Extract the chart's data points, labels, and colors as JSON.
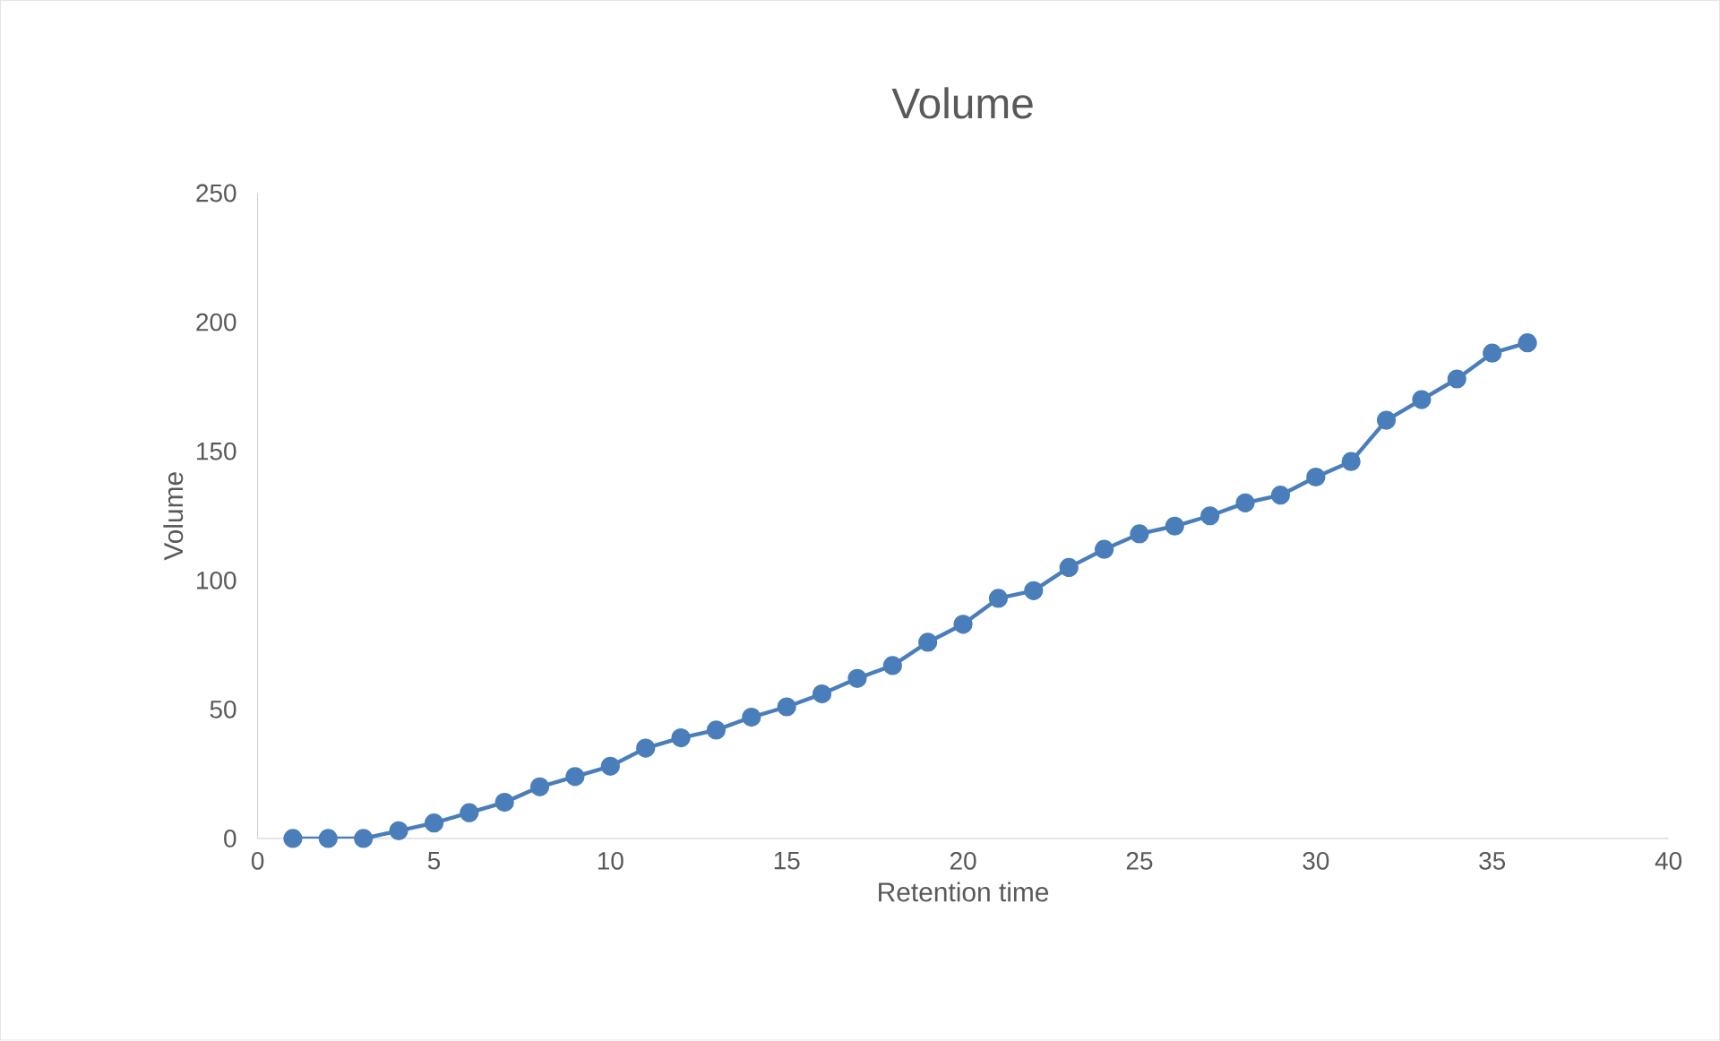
{
  "chart_data": {
    "type": "line",
    "title": "Volume",
    "xlabel": "Retention time",
    "ylabel": "Volume",
    "x": [
      1,
      2,
      3,
      4,
      5,
      6,
      7,
      8,
      9,
      10,
      11,
      12,
      13,
      14,
      15,
      16,
      17,
      18,
      19,
      20,
      21,
      22,
      23,
      24,
      25,
      26,
      27,
      28,
      29,
      30,
      31,
      32,
      33,
      34,
      35,
      36
    ],
    "series": [
      {
        "color": "#4a7ebb",
        "values": [
          0,
          0,
          0,
          3,
          6,
          10,
          14,
          20,
          24,
          28,
          35,
          39,
          42,
          47,
          51,
          56,
          62,
          67,
          76,
          83,
          93,
          96,
          105,
          112,
          118,
          121,
          125,
          130,
          133,
          140,
          146,
          162,
          170,
          178,
          188,
          192
        ]
      }
    ],
    "xlim": [
      0,
      40
    ],
    "xticks": [
      0,
      5,
      10,
      15,
      20,
      25,
      30,
      35,
      40
    ],
    "ylim": [
      0,
      250
    ],
    "yticks": [
      0,
      50,
      100,
      150,
      200,
      250
    ],
    "marker": "circle",
    "line_style": "solid",
    "grid": false
  }
}
